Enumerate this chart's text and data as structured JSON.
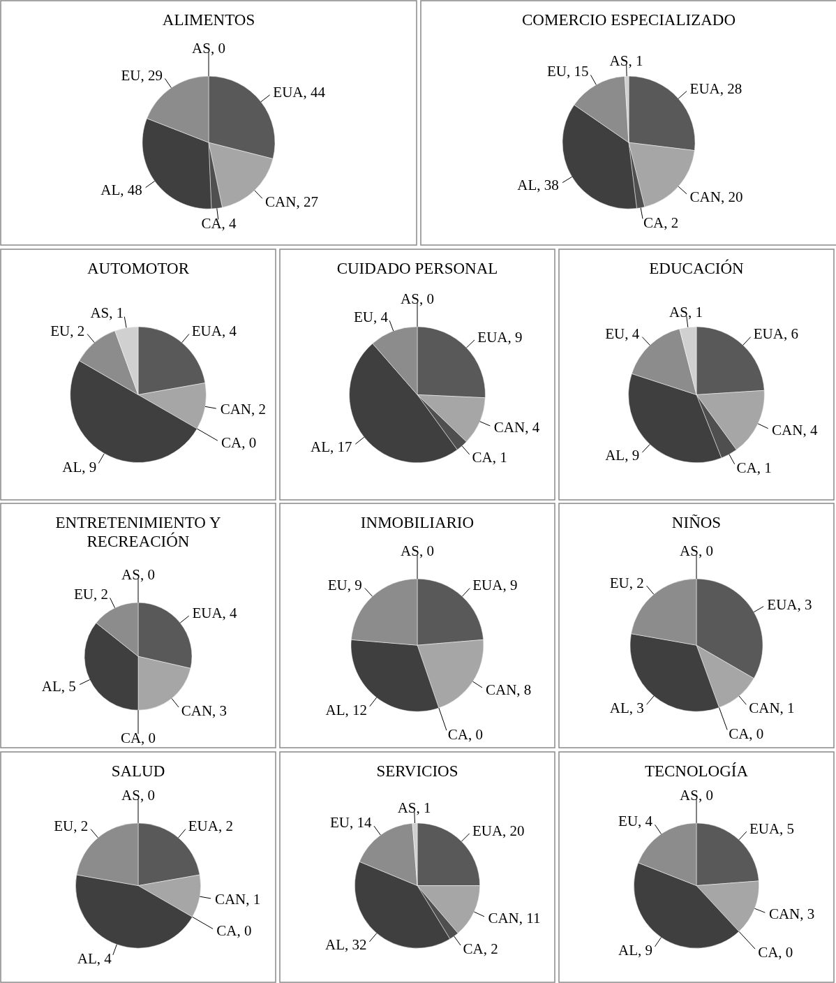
{
  "chart_data": [
    {
      "type": "pie",
      "title": "ALIMENTOS",
      "categories": [
        "EUA",
        "CAN",
        "CA",
        "AL",
        "EU",
        "AS"
      ],
      "values": [
        44,
        27,
        4,
        48,
        29,
        0
      ],
      "colors": [
        "#595959",
        "#a6a6a6",
        "#4f4f4f",
        "#3f3f3f",
        "#8c8c8c",
        "#d0d0d0"
      ],
      "value_labels": [
        ", 44",
        ", 27",
        ", 4",
        ", 48",
        ", 29",
        ", 0"
      ]
    },
    {
      "type": "pie",
      "title": "COMERCIO ESPECIALIZADO",
      "categories": [
        "EUA",
        "CAN",
        "CA",
        "AL",
        "EU",
        "AS"
      ],
      "values": [
        28,
        20,
        2,
        38,
        15,
        1
      ],
      "colors": [
        "#595959",
        "#a6a6a6",
        "#4f4f4f",
        "#3f3f3f",
        "#8c8c8c",
        "#d0d0d0"
      ],
      "value_labels": [
        ", 28",
        ", 20",
        ", 2",
        ", 38",
        ", 15",
        ", 1"
      ]
    },
    {
      "type": "pie",
      "title": "AUTOMOTOR",
      "categories": [
        "EUA",
        "CAN",
        "CA",
        "AL",
        "EU",
        "AS"
      ],
      "values": [
        4,
        2,
        0,
        9,
        2,
        1
      ],
      "colors": [
        "#595959",
        "#a6a6a6",
        "#4f4f4f",
        "#3f3f3f",
        "#8c8c8c",
        "#d0d0d0"
      ],
      "value_labels": [
        ", 4",
        ", 2",
        ", 0",
        ", 9",
        ", 2",
        ", 1"
      ]
    },
    {
      "type": "pie",
      "title": "CUIDADO PERSONAL",
      "categories": [
        "EUA",
        "CAN",
        "CA",
        "AL",
        "EU",
        "AS"
      ],
      "values": [
        9,
        4,
        1,
        17,
        4,
        0
      ],
      "colors": [
        "#595959",
        "#a6a6a6",
        "#4f4f4f",
        "#3f3f3f",
        "#8c8c8c",
        "#d0d0d0"
      ],
      "value_labels": [
        ", 9",
        ", 4",
        ", 1",
        ", 17",
        ", 4",
        ", 0"
      ]
    },
    {
      "type": "pie",
      "title": "EDUCACIÓN",
      "categories": [
        "EUA",
        "CAN",
        "CA",
        "AL",
        "EU",
        "AS"
      ],
      "values": [
        6,
        4,
        1,
        9,
        4,
        1
      ],
      "colors": [
        "#595959",
        "#a6a6a6",
        "#4f4f4f",
        "#3f3f3f",
        "#8c8c8c",
        "#d0d0d0"
      ],
      "value_labels": [
        ", 6",
        ", 4",
        ", 1",
        ", 9",
        ", 4",
        ", 1"
      ]
    },
    {
      "type": "pie",
      "title": "ENTRETENIMIENTO Y RECREACIÓN",
      "categories": [
        "EUA",
        "CAN",
        "CA",
        "AL",
        "EU",
        "AS"
      ],
      "values": [
        4,
        3,
        0,
        5,
        2,
        0
      ],
      "colors": [
        "#595959",
        "#a6a6a6",
        "#4f4f4f",
        "#3f3f3f",
        "#8c8c8c",
        "#d0d0d0"
      ],
      "value_labels": [
        ", 4",
        ", 3",
        ", 0",
        ", 5",
        ", 2",
        ", 0"
      ]
    },
    {
      "type": "pie",
      "title": "INMOBILIARIO",
      "categories": [
        "EUA",
        "CAN",
        "CA",
        "AL",
        "EU",
        "AS"
      ],
      "values": [
        9,
        8,
        0,
        12,
        9,
        0
      ],
      "colors": [
        "#595959",
        "#a6a6a6",
        "#4f4f4f",
        "#3f3f3f",
        "#8c8c8c",
        "#d0d0d0"
      ],
      "value_labels": [
        ", 9",
        ", 8",
        ", 0",
        ", 12",
        ", 9",
        ", 0"
      ]
    },
    {
      "type": "pie",
      "title": "NIÑOS",
      "categories": [
        "EUA",
        "CAN",
        "CA",
        "AL",
        "EU",
        "AS"
      ],
      "values": [
        3,
        1,
        0,
        3,
        2,
        0
      ],
      "colors": [
        "#595959",
        "#a6a6a6",
        "#4f4f4f",
        "#3f3f3f",
        "#8c8c8c",
        "#d0d0d0"
      ],
      "value_labels": [
        ", 3",
        ", 1",
        ", 0",
        ", 3",
        ", 2",
        ", 0"
      ]
    },
    {
      "type": "pie",
      "title": "SALUD",
      "categories": [
        "EUA",
        "CAN",
        "CA",
        "AL",
        "EU",
        "AS"
      ],
      "values": [
        2,
        1,
        0,
        4,
        2,
        0
      ],
      "colors": [
        "#595959",
        "#a6a6a6",
        "#4f4f4f",
        "#3f3f3f",
        "#8c8c8c",
        "#d0d0d0"
      ],
      "value_labels": [
        ", 2",
        ", 1",
        ", 0",
        ", 4",
        ", 2",
        ", 0"
      ]
    },
    {
      "type": "pie",
      "title": "SERVICIOS",
      "categories": [
        "EUA",
        "CAN",
        "CA",
        "AL",
        "EU",
        "AS"
      ],
      "values": [
        20,
        11,
        2,
        32,
        14,
        1
      ],
      "colors": [
        "#595959",
        "#a6a6a6",
        "#4f4f4f",
        "#3f3f3f",
        "#8c8c8c",
        "#d0d0d0"
      ],
      "value_labels": [
        ", 20",
        ", 11",
        ", 2",
        ", 32",
        ", 14",
        ", 1"
      ]
    },
    {
      "type": "pie",
      "title": "TECNOLOGÍA",
      "categories": [
        "EUA",
        "CAN",
        "CA",
        "AL",
        "EU",
        "AS"
      ],
      "values": [
        5,
        3,
        0,
        9,
        4,
        0
      ],
      "colors": [
        "#595959",
        "#a6a6a6",
        "#4f4f4f",
        "#3f3f3f",
        "#8c8c8c",
        "#d0d0d0"
      ],
      "value_labels": [
        ", 5",
        ", 3",
        ", 0",
        ", 9",
        ", 4",
        ", 0"
      ]
    }
  ]
}
